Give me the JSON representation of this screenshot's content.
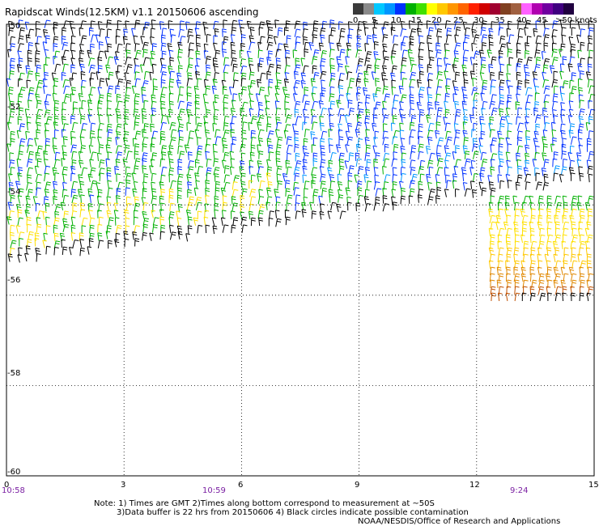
{
  "title": "Rapidscat Winds(12.5KM) v1.1 20150606 ascending",
  "colorbar": {
    "colors": [
      "#3a3a3a",
      "#8a8a8a",
      "#00c8ff",
      "#0096ff",
      "#0030ff",
      "#00b000",
      "#40e000",
      "#ffff00",
      "#ffc800",
      "#ff9600",
      "#ff6400",
      "#ff2000",
      "#d00000",
      "#a00030",
      "#804020",
      "#a06040",
      "#ff60ff",
      "#b000b0",
      "#7000a0",
      "#400080",
      "#200040"
    ],
    "labels": [
      "0",
      "5",
      "10",
      "15",
      "20",
      "25",
      "30",
      "35",
      "40",
      "45",
      ">50 knots"
    ]
  },
  "lat_labels": [
    "-50",
    "-52",
    "-54",
    "-56",
    "-58",
    "-60"
  ],
  "lon_labels": [
    "0",
    "3",
    "6",
    "9",
    "12",
    "15"
  ],
  "time_labels": [
    "10:58",
    "10:59",
    "9:24"
  ],
  "notes": {
    "line1": "Note: 1) Times are GMT 2)Times along bottom correspond to measurement at ~50S",
    "line2": "3)Data buffer is 22 hrs from 20150606 4) Black circles indicate possible contamination",
    "line3": "NOAA/NESDIS/Office of Research and Applications"
  },
  "map_data": {
    "lon_range": [
      0,
      15
    ],
    "lat_range": [
      -60,
      -50
    ],
    "grid": true,
    "gridlines_lon": [
      3,
      6,
      9,
      12
    ],
    "gridlines_lat": [
      -52,
      -54,
      -56,
      -58
    ]
  }
}
